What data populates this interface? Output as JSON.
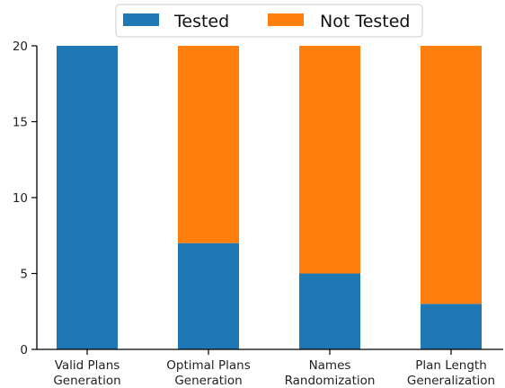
{
  "chart_data": {
    "type": "bar",
    "stacked": true,
    "categories": [
      [
        "Valid Plans",
        "Generation"
      ],
      [
        "Optimal Plans",
        "Generation"
      ],
      [
        "Names",
        "Randomization"
      ],
      [
        "Plan Length",
        "Generalization"
      ]
    ],
    "series": [
      {
        "name": "Tested",
        "color": "#1f77b4",
        "values": [
          20,
          7,
          5,
          3
        ]
      },
      {
        "name": "Not Tested",
        "color": "#ff7f0e",
        "values": [
          0,
          13,
          15,
          17
        ]
      }
    ],
    "ylim": [
      0,
      20
    ],
    "yticks": [
      "0",
      "5",
      "10",
      "15",
      "20"
    ],
    "legend": {
      "position": "top-center",
      "orientation": "horizontal"
    },
    "grid": false
  }
}
